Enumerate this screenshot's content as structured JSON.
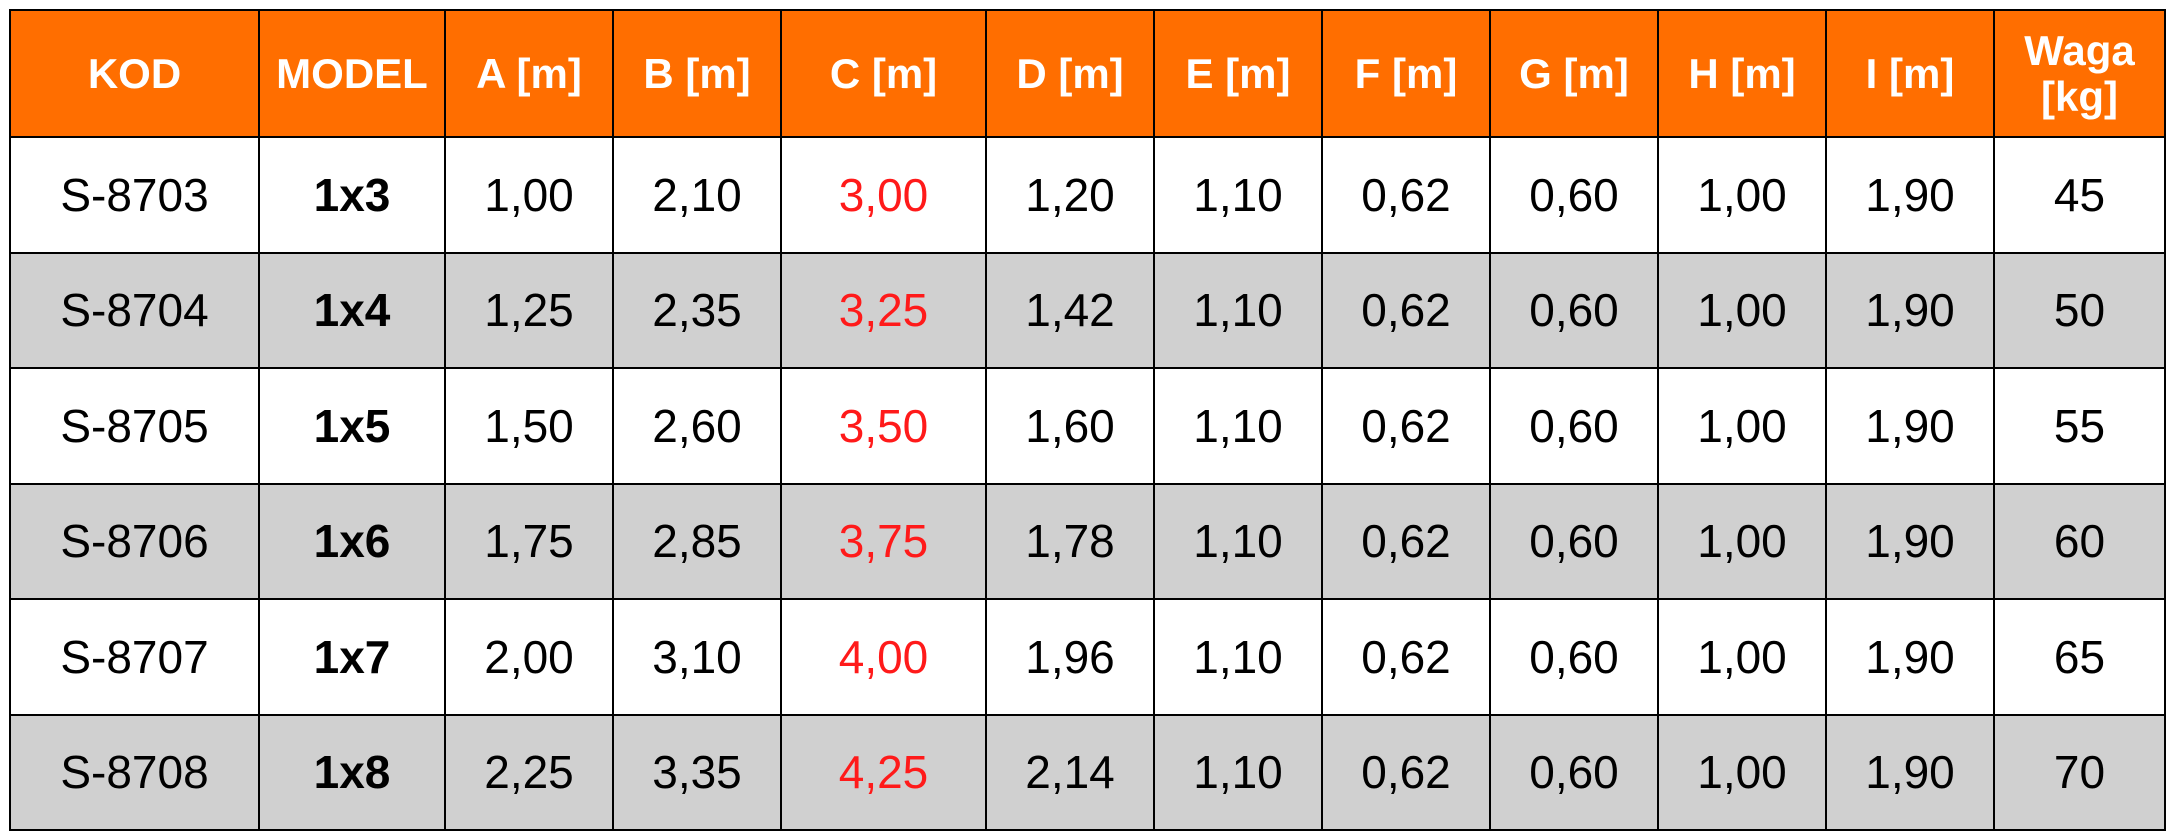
{
  "colors": {
    "header_bg": "#ff6e00",
    "header_text": "#ffffff",
    "row_alt_bg": "#d0d0d0",
    "highlight_text": "#ff1a1a"
  },
  "headers": [
    "KOD",
    "MODEL",
    "A [m]",
    "B [m]",
    "C [m]",
    "D [m]",
    "E [m]",
    "F [m]",
    "G [m]",
    "H [m]",
    "I [m]",
    "Waga [kg]"
  ],
  "header_waga_lines": [
    "Waga",
    "[kg]"
  ],
  "rows": [
    [
      "S-8703",
      "1x3",
      "1,00",
      "2,10",
      "3,00",
      "1,20",
      "1,10",
      "0,62",
      "0,60",
      "1,00",
      "1,90",
      "45"
    ],
    [
      "S-8704",
      "1x4",
      "1,25",
      "2,35",
      "3,25",
      "1,42",
      "1,10",
      "0,62",
      "0,60",
      "1,00",
      "1,90",
      "50"
    ],
    [
      "S-8705",
      "1x5",
      "1,50",
      "2,60",
      "3,50",
      "1,60",
      "1,10",
      "0,62",
      "0,60",
      "1,00",
      "1,90",
      "55"
    ],
    [
      "S-8706",
      "1x6",
      "1,75",
      "2,85",
      "3,75",
      "1,78",
      "1,10",
      "0,62",
      "0,60",
      "1,00",
      "1,90",
      "60"
    ],
    [
      "S-8707",
      "1x7",
      "2,00",
      "3,10",
      "4,00",
      "1,96",
      "1,10",
      "0,62",
      "0,60",
      "1,00",
      "1,90",
      "65"
    ],
    [
      "S-8708",
      "1x8",
      "2,25",
      "3,35",
      "4,25",
      "2,14",
      "1,10",
      "0,62",
      "0,60",
      "1,00",
      "1,90",
      "70"
    ]
  ]
}
